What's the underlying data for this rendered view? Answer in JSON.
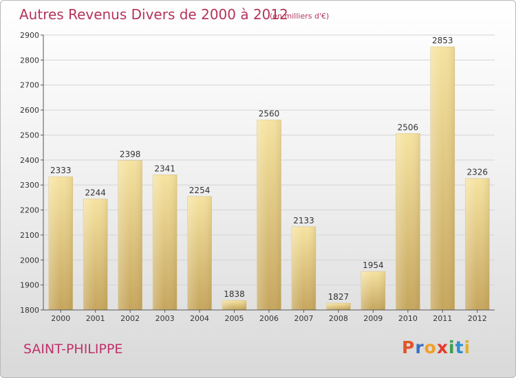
{
  "header": {
    "title": "Autres Revenus Divers de 2000 à 2012",
    "subtitle": "(en milliers d'€)"
  },
  "footer": {
    "commune": "SAINT-PHILIPPE",
    "logo_text": "Proxiti",
    "logo_colors": [
      "#e0562a",
      "#3a6fc4",
      "#f0a02a",
      "#e33a2a",
      "#3aa04a",
      "#2f8ed0",
      "#e0b030"
    ]
  },
  "colors": {
    "bar_light": "#f6e3a0",
    "bar_dark": "#c5a55c",
    "title": "#b5335a",
    "grid": "#d4d4d4"
  },
  "chart_data": {
    "type": "bar",
    "title": "Autres Revenus Divers de 2000 à 2012",
    "subtitle": "(en milliers d'€)",
    "categories": [
      "2000",
      "2001",
      "2002",
      "2003",
      "2004",
      "2005",
      "2006",
      "2007",
      "2008",
      "2009",
      "2010",
      "2011",
      "2012"
    ],
    "values": [
      2333,
      2244,
      2398,
      2341,
      2254,
      1838,
      2560,
      2133,
      1827,
      1954,
      2506,
      2853,
      2326
    ],
    "ylim": [
      1800,
      2900
    ],
    "yticks": [
      1800,
      1900,
      2000,
      2100,
      2200,
      2300,
      2400,
      2500,
      2600,
      2700,
      2800,
      2900
    ],
    "grid": true,
    "data_labels": true
  }
}
